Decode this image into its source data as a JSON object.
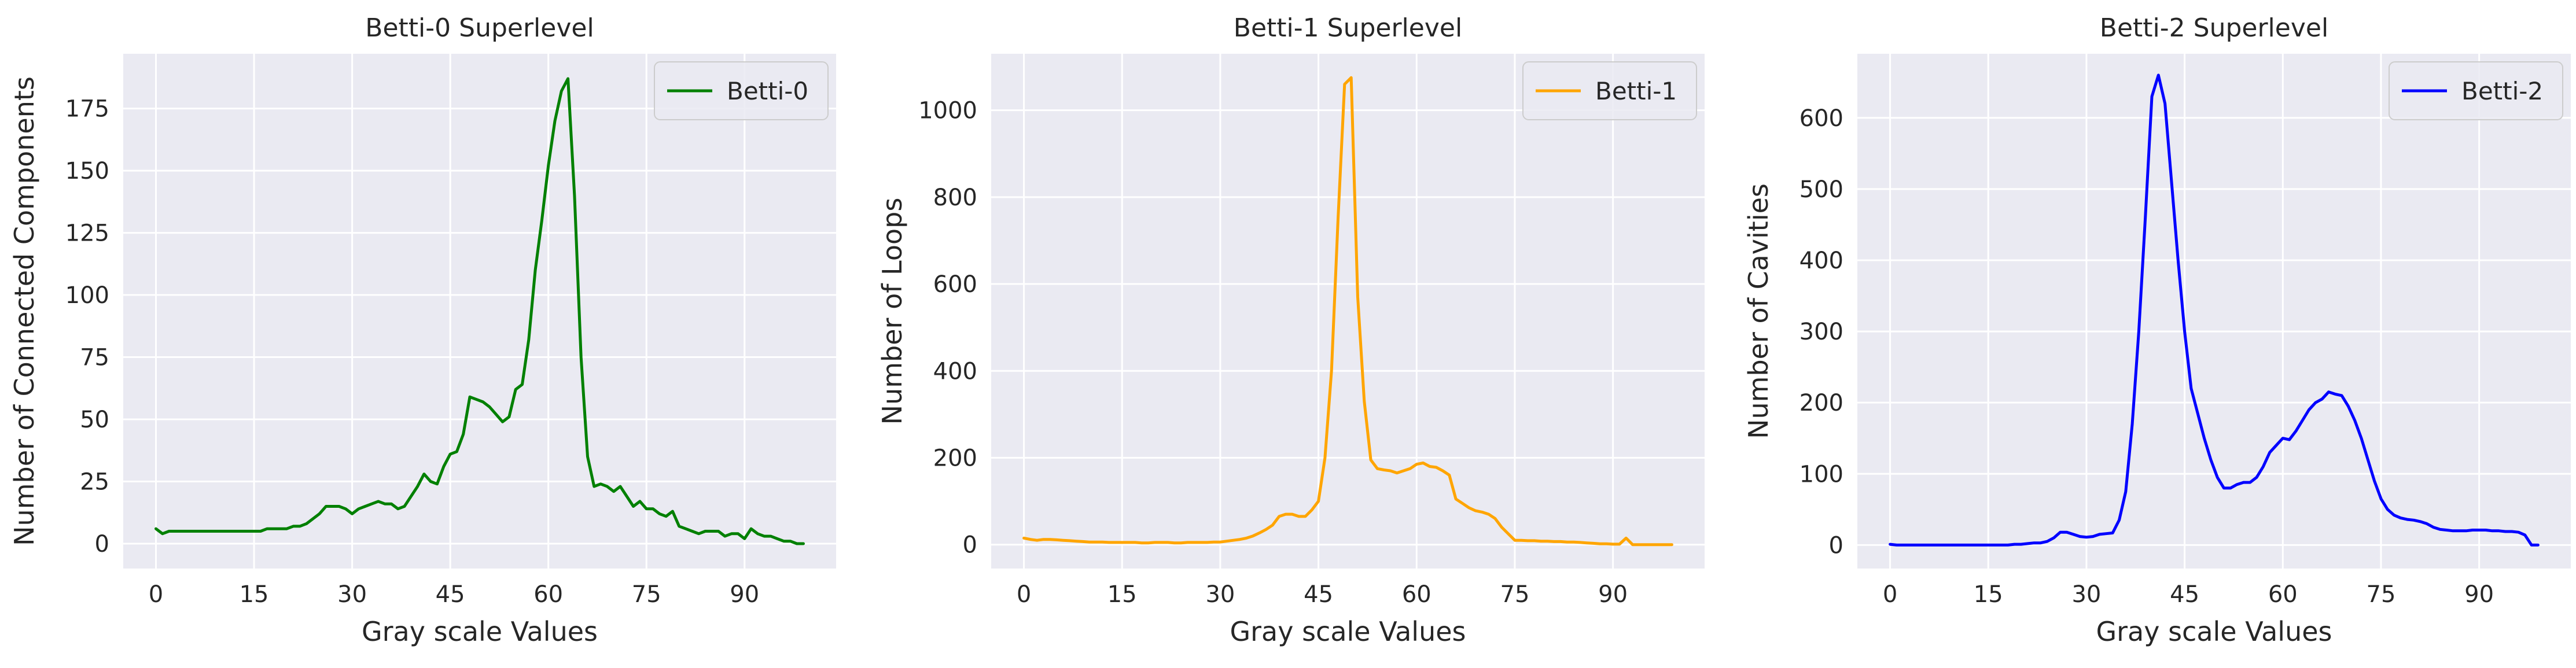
{
  "chart_data": [
    {
      "type": "line",
      "title": "Betti-0 Superlevel",
      "xlabel": "Gray scale Values",
      "ylabel": "Number of Connected Components",
      "xlim": [
        -5,
        104
      ],
      "ylim": [
        -10,
        197
      ],
      "xticks": [
        0,
        15,
        30,
        45,
        60,
        75,
        90
      ],
      "yticks": [
        0,
        25,
        50,
        75,
        100,
        125,
        150,
        175
      ],
      "grid": true,
      "legend": "top-right",
      "series": [
        {
          "name": "Betti-0",
          "color": "#008000",
          "x": [
            0,
            1,
            2,
            3,
            4,
            5,
            6,
            7,
            8,
            9,
            10,
            11,
            12,
            13,
            14,
            15,
            16,
            17,
            18,
            19,
            20,
            21,
            22,
            23,
            24,
            25,
            26,
            27,
            28,
            29,
            30,
            31,
            32,
            33,
            34,
            35,
            36,
            37,
            38,
            39,
            40,
            41,
            42,
            43,
            44,
            45,
            46,
            47,
            48,
            49,
            50,
            51,
            52,
            53,
            54,
            55,
            56,
            57,
            58,
            59,
            60,
            61,
            62,
            63,
            64,
            65,
            66,
            67,
            68,
            69,
            70,
            71,
            72,
            73,
            74,
            75,
            76,
            77,
            78,
            79,
            80,
            81,
            82,
            83,
            84,
            85,
            86,
            87,
            88,
            89,
            90,
            91,
            92,
            93,
            94,
            95,
            96,
            97,
            98,
            99
          ],
          "y": [
            6,
            4,
            5,
            5,
            5,
            5,
            5,
            5,
            5,
            5,
            5,
            5,
            5,
            5,
            5,
            5,
            5,
            6,
            6,
            6,
            6,
            7,
            7,
            8,
            10,
            12,
            15,
            15,
            15,
            14,
            12,
            14,
            15,
            16,
            17,
            16,
            16,
            14,
            15,
            19,
            23,
            28,
            25,
            24,
            31,
            36,
            37,
            44,
            59,
            58,
            57,
            55,
            52,
            49,
            51,
            62,
            64,
            82,
            110,
            130,
            152,
            170,
            182,
            187,
            140,
            75,
            35,
            23,
            24,
            23,
            21,
            23,
            19,
            15,
            17,
            14,
            14,
            12,
            11,
            13,
            7,
            6,
            5,
            4,
            5,
            5,
            5,
            3,
            4,
            4,
            2,
            6,
            4,
            3,
            3,
            2,
            1,
            1,
            0,
            0
          ]
        }
      ]
    },
    {
      "type": "line",
      "title": "Betti-1 Superlevel",
      "xlabel": "Gray scale Values",
      "ylabel": "Number of Loops",
      "xlim": [
        -5,
        104
      ],
      "ylim": [
        -55,
        1130
      ],
      "xticks": [
        0,
        15,
        30,
        45,
        60,
        75,
        90
      ],
      "yticks": [
        0,
        200,
        400,
        600,
        800,
        1000
      ],
      "grid": true,
      "legend": "top-right",
      "series": [
        {
          "name": "Betti-1",
          "color": "#FFA500",
          "x": [
            0,
            1,
            2,
            3,
            4,
            5,
            6,
            7,
            8,
            9,
            10,
            11,
            12,
            13,
            14,
            15,
            16,
            17,
            18,
            19,
            20,
            21,
            22,
            23,
            24,
            25,
            26,
            27,
            28,
            29,
            30,
            31,
            32,
            33,
            34,
            35,
            36,
            37,
            38,
            39,
            40,
            41,
            42,
            43,
            44,
            45,
            46,
            47,
            48,
            49,
            50,
            51,
            52,
            53,
            54,
            55,
            56,
            57,
            58,
            59,
            60,
            61,
            62,
            63,
            64,
            65,
            66,
            67,
            68,
            69,
            70,
            71,
            72,
            73,
            74,
            75,
            76,
            77,
            78,
            79,
            80,
            81,
            82,
            83,
            84,
            85,
            86,
            87,
            88,
            89,
            90,
            91,
            92,
            93,
            94,
            95,
            96,
            97,
            98,
            99
          ],
          "y": [
            15,
            12,
            10,
            12,
            12,
            11,
            10,
            9,
            8,
            7,
            6,
            6,
            6,
            5,
            5,
            5,
            5,
            5,
            4,
            4,
            5,
            5,
            5,
            4,
            4,
            5,
            5,
            5,
            5,
            6,
            6,
            8,
            10,
            12,
            15,
            20,
            27,
            35,
            45,
            65,
            70,
            70,
            65,
            65,
            80,
            100,
            200,
            400,
            750,
            1060,
            1075,
            570,
            330,
            195,
            175,
            172,
            170,
            165,
            170,
            175,
            185,
            188,
            180,
            178,
            170,
            160,
            105,
            95,
            85,
            78,
            75,
            70,
            60,
            40,
            25,
            10,
            10,
            9,
            9,
            8,
            8,
            7,
            7,
            6,
            6,
            5,
            4,
            3,
            2,
            2,
            1,
            1,
            15,
            0,
            0,
            0,
            0,
            0,
            0,
            0
          ]
        }
      ]
    },
    {
      "type": "line",
      "title": "Betti-2 Superlevel",
      "xlabel": "Gray scale Values",
      "ylabel": "Number of Cavities",
      "xlim": [
        -5,
        104
      ],
      "ylim": [
        -33,
        690
      ],
      "xticks": [
        0,
        15,
        30,
        45,
        60,
        75,
        90
      ],
      "yticks": [
        0,
        100,
        200,
        300,
        400,
        500,
        600
      ],
      "grid": true,
      "legend": "top-right",
      "series": [
        {
          "name": "Betti-2",
          "color": "#0000FF",
          "x": [
            0,
            1,
            2,
            3,
            4,
            5,
            6,
            7,
            8,
            9,
            10,
            11,
            12,
            13,
            14,
            15,
            16,
            17,
            18,
            19,
            20,
            21,
            22,
            23,
            24,
            25,
            26,
            27,
            28,
            29,
            30,
            31,
            32,
            33,
            34,
            35,
            36,
            37,
            38,
            39,
            40,
            41,
            42,
            43,
            44,
            45,
            46,
            47,
            48,
            49,
            50,
            51,
            52,
            53,
            54,
            55,
            56,
            57,
            58,
            59,
            60,
            61,
            62,
            63,
            64,
            65,
            66,
            67,
            68,
            69,
            70,
            71,
            72,
            73,
            74,
            75,
            76,
            77,
            78,
            79,
            80,
            81,
            82,
            83,
            84,
            85,
            86,
            87,
            88,
            89,
            90,
            91,
            92,
            93,
            94,
            95,
            96,
            97,
            98,
            99
          ],
          "y": [
            1,
            0,
            0,
            0,
            0,
            0,
            0,
            0,
            0,
            0,
            0,
            0,
            0,
            0,
            0,
            0,
            0,
            0,
            0,
            1,
            1,
            2,
            3,
            3,
            5,
            10,
            18,
            18,
            15,
            12,
            11,
            12,
            15,
            16,
            17,
            35,
            75,
            170,
            300,
            460,
            630,
            660,
            620,
            510,
            400,
            300,
            220,
            185,
            150,
            120,
            95,
            80,
            80,
            85,
            88,
            88,
            95,
            110,
            130,
            140,
            150,
            148,
            160,
            175,
            190,
            200,
            205,
            215,
            212,
            210,
            195,
            175,
            150,
            120,
            90,
            65,
            50,
            42,
            38,
            36,
            35,
            33,
            30,
            25,
            22,
            21,
            20,
            20,
            20,
            21,
            21,
            21,
            20,
            20,
            19,
            19,
            18,
            14,
            0,
            0
          ]
        }
      ]
    }
  ]
}
